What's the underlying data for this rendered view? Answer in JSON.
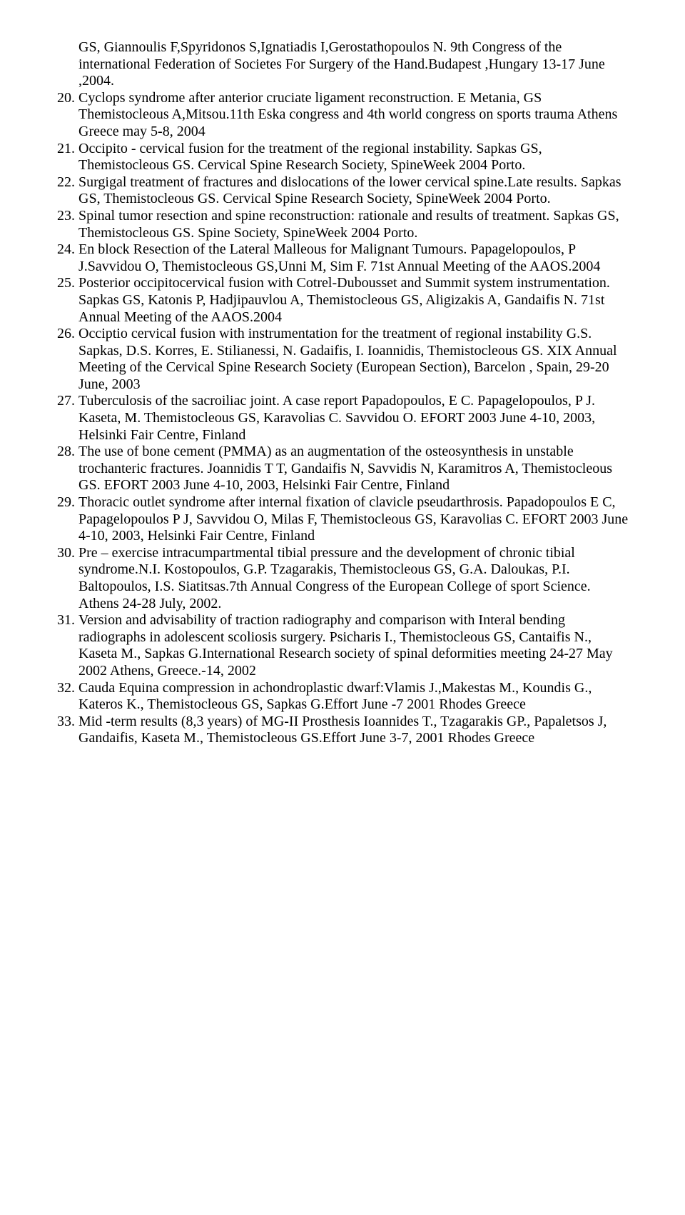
{
  "pre_text": "GS, Giannoulis F,Spyridonos S,Ignatiadis I,Gerostathopoulos N. 9th Congress of the international Federation of Societes For Surgery of the Hand.Budapest ,Hungary 13-17 June ,2004.",
  "list_start": 20,
  "items": [
    "Cyclops syndrome after anterior cruciate ligament reconstruction. E Metania, GS Themistocleous A,Mitsou.11th Eska congress and 4th world congress on sports trauma Athens Greece may 5-8, 2004",
    "Occipito - cervical fusion for the treatment of the regional instability. Sapkas GS, Themistocleous GS. Cervical Spine Research Society, SpineWeek 2004 Porto.",
    "Surgigal treatment of fractures and dislocations of the lower cervical spine.Late results. Sapkas GS, Themistocleous GS. Cervical Spine Research Society, SpineWeek 2004 Porto.",
    "Spinal tumor resection and spine reconstruction: rationale and results of treatment. Sapkas GS, Themistocleous GS. Spine Society, SpineWeek 2004 Porto.",
    "En block Resection of the Lateral Malleous for Malignant Tumours. Papagelopoulos, P J.Savvidou O, Themistocleous GS,Unni M, Sim F. 71st Annual Meeting of the AAOS.2004",
    "Posterior occipitocervical fusion with Cotrel-Dubousset and Summit system instrumentation. Sapkas GS, Katonis P, Hadjipauvlou A, Themistocleous GS, Aligizakis A, Gandaifis N. 71st Annual Meeting of the AAOS.2004",
    "Occiptio cervical fusion with instrumentation for the treatment of regional instability G.S. Sapkas, D.S. Korres, E. Stilianessi, N. Gadaifis, I. Ioannidis, Themistocleous GS. XIX Annual Meeting of the Cervical Spine Research Society (European Section), Barcelon , Spain, 29-20 June, 2003",
    "Tuberculosis of the sacroiliac joint. A case report Papadopoulos, E C. Papagelopoulos, P J. Kaseta, M. Themistocleous GS, Karavolias C. Savvidou O. EFORT 2003 June 4-10, 2003, Helsinki Fair Centre, Finland",
    "The use of bone cement (PMMA) as an augmentation of the osteosynthesis in unstable trochanteric fractures. Joannidis T T, Gandaifis N, Savvidis N, Karamitros A, Themistocleous GS. EFORT 2003 June 4-10, 2003, Helsinki Fair Centre, Finland",
    "Thoracic outlet syndrome after internal fixation of clavicle pseudarthrosis. Papadopoulos E C, Papagelopoulos P J, Savvidou O, Milas F, Themistocleous GS, Karavolias C. EFORT 2003 June 4-10, 2003, Helsinki Fair Centre, Finland",
    "Pre – exercise intracumpartmental tibial pressure and the development of chronic tibial syndrome.N.I. Kostopoulos, G.P. Tzagarakis, Themistocleous GS, G.A. Daloukas, P.I. Baltopoulos, I.S. Siatitsas.7th Annual Congress of the European College of sport Science. Athens 24-28 July, 2002.",
    "Version and advisability of traction radiography and comparison with Interal bending radiographs in adolescent scoliosis surgery. Psicharis I., Themistocleous GS, Cantaifis N., Kaseta M., Sapkas G.International Research society of spinal deformities meeting 24-27 May 2002 Athens, Greece.-14, 2002",
    "Cauda Equina compression in achondroplastic dwarf:Vlamis J.,Makestas M., Koundis G., Kateros K., Themistocleous GS, Sapkas G.Effort June -7 2001 Rhodes Greece",
    "Mid -term results (8,3 years) of MG-II Prosthesis Ioannides T., Tzagarakis GP., Papaletsos J, Gandaifis, Kaseta M., Themistocleous GS.Effort June 3-7, 2001 Rhodes Greece"
  ]
}
